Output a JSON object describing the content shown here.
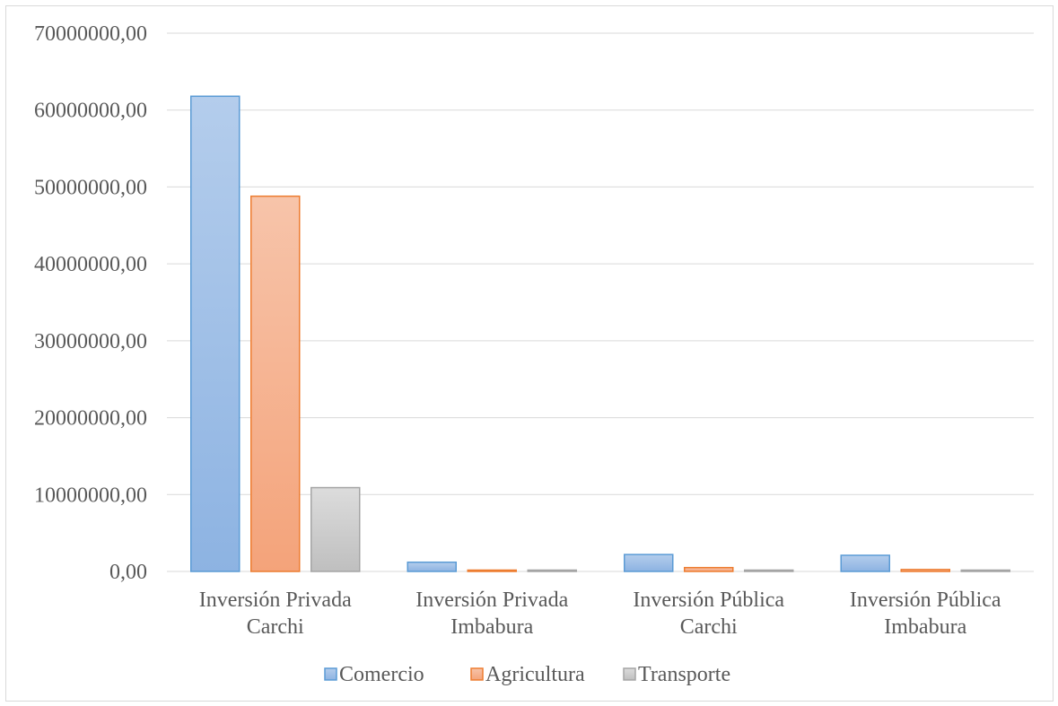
{
  "chart_data": {
    "type": "bar",
    "title": "",
    "xlabel": "",
    "ylabel": "",
    "ylim": [
      0,
      70000000
    ],
    "yticks": [
      "0,00",
      "10000000,00",
      "20000000,00",
      "30000000,00",
      "40000000,00",
      "50000000,00",
      "60000000,00",
      "70000000,00"
    ],
    "categories": [
      [
        "Inversión Privada",
        "Carchi"
      ],
      [
        "Inversión Privada",
        "Imbabura"
      ],
      [
        "Inversión Pública",
        "Carchi"
      ],
      [
        "Inversión Pública",
        "Imbabura"
      ]
    ],
    "series": [
      {
        "name": "Comercio",
        "values": [
          61800000,
          1200000,
          2200000,
          2100000
        ],
        "color": "#5b9bd5",
        "light": "#b4cdec",
        "dark": "#8db3e2"
      },
      {
        "name": "Agricultura",
        "values": [
          48800000,
          150000,
          500000,
          250000
        ],
        "color": "#ed7d31",
        "light": "#f7c4aa",
        "dark": "#f4a37a"
      },
      {
        "name": "Transporte",
        "values": [
          10900000,
          80000,
          80000,
          80000
        ],
        "color": "#a5a5a5",
        "light": "#dcdcdc",
        "dark": "#bfbfbf"
      }
    ],
    "grid": true,
    "legend_position": "bottom"
  }
}
